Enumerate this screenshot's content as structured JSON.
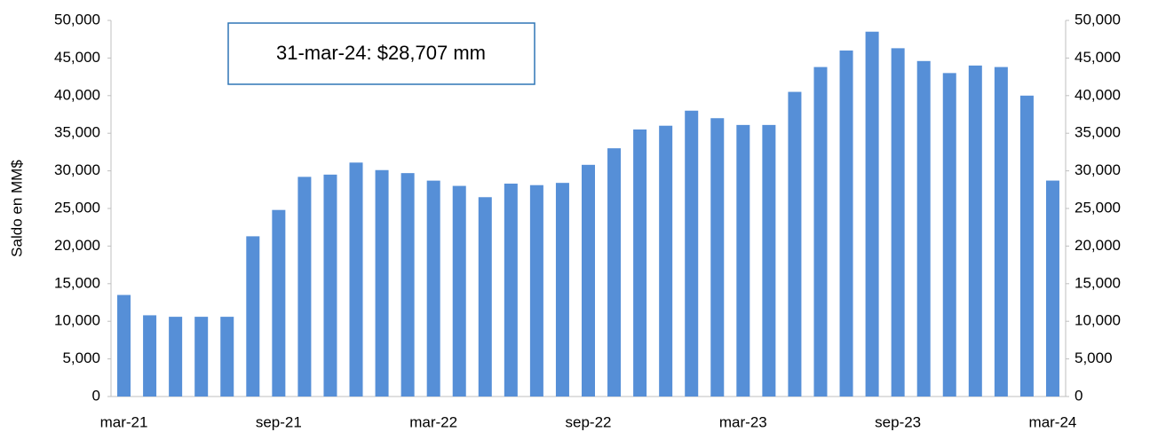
{
  "chart_data": {
    "type": "bar",
    "annotation": "31-mar-24: $28,707 mm",
    "ylabel": "Saldo en MM$",
    "categories": [
      "mar-21",
      null,
      null,
      null,
      null,
      null,
      "sep-21",
      null,
      null,
      null,
      null,
      null,
      "mar-22",
      null,
      null,
      null,
      null,
      null,
      "sep-22",
      null,
      null,
      null,
      null,
      null,
      "mar-23",
      null,
      null,
      null,
      null,
      null,
      "sep-23",
      null,
      null,
      null,
      null,
      null,
      "mar-24"
    ],
    "values": [
      13500,
      10800,
      10600,
      10600,
      10600,
      21300,
      24800,
      29200,
      29500,
      31100,
      30100,
      29700,
      28700,
      28000,
      26500,
      28300,
      28100,
      28400,
      30800,
      33000,
      35500,
      36000,
      38000,
      37000,
      36100,
      36100,
      40500,
      43800,
      46000,
      48500,
      46300,
      44600,
      43000,
      44000,
      43800,
      40000,
      28707
    ],
    "color": "#568fd7",
    "ylim": [
      0,
      50000
    ],
    "yticks": [
      0,
      {
        "value": 5000,
        "label": "5,000"
      },
      {
        "value": 10000,
        "label": "10,000"
      },
      {
        "value": 15000,
        "label": "15,000"
      },
      {
        "value": 20000,
        "label": "20,000"
      },
      {
        "value": 25000,
        "label": "25,000"
      },
      {
        "value": 30000,
        "label": "30,000"
      },
      {
        "value": 35000,
        "label": "35,000"
      },
      {
        "value": 40000,
        "label": "40,000"
      },
      {
        "value": 45000,
        "label": "45,000"
      },
      {
        "value": 50000,
        "label": "50,000"
      }
    ],
    "y2lim": [
      0,
      50000
    ],
    "y2ticks": [
      0,
      {
        "value": 5000,
        "label": "5,000"
      },
      {
        "value": 10000,
        "label": "10,000"
      },
      {
        "value": 15000,
        "label": "15,000"
      },
      {
        "value": 20000,
        "label": "20,000"
      },
      {
        "value": 25000,
        "label": "25,000"
      },
      {
        "value": 30000,
        "label": "30,000"
      },
      {
        "value": 35000,
        "label": "35,000"
      },
      {
        "value": 40000,
        "label": "40,000"
      },
      {
        "value": 45000,
        "label": "45,000"
      },
      {
        "value": 50000,
        "label": "50,000"
      }
    ]
  }
}
